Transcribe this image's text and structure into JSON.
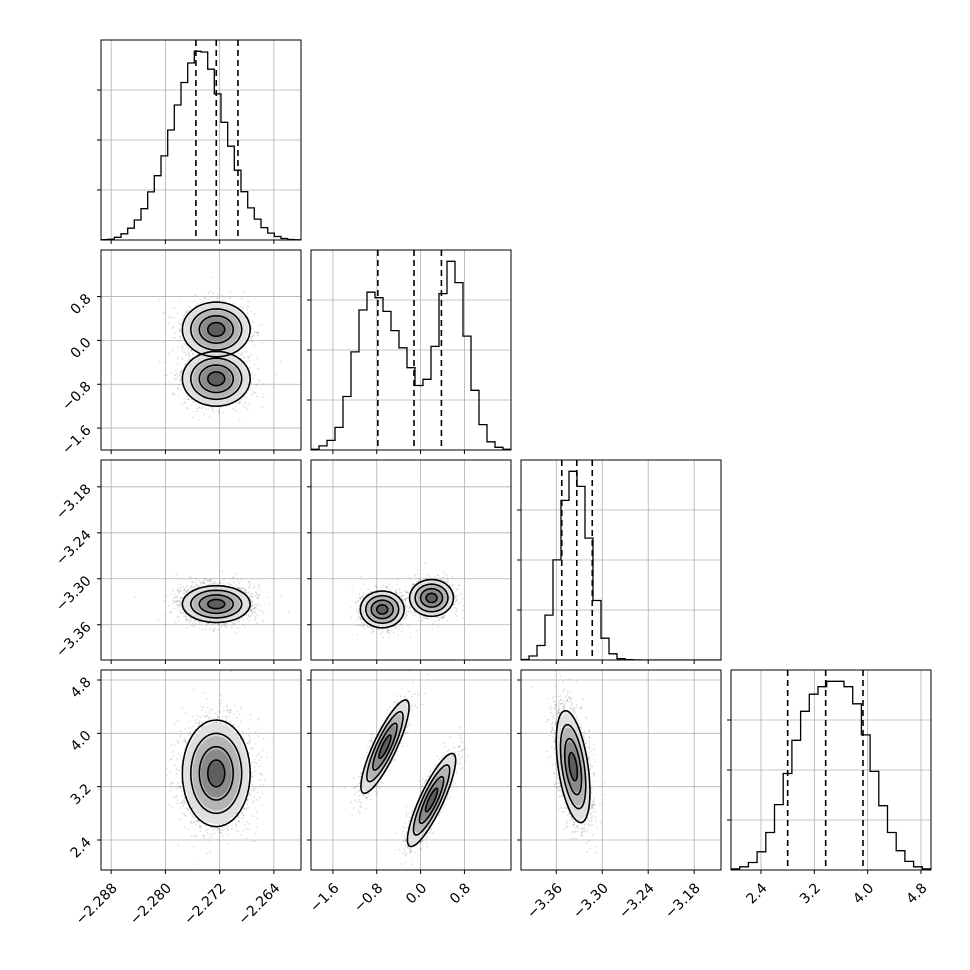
{
  "chart_data": {
    "type": "corner",
    "parameters": [
      {
        "name": "",
        "quantiles": [
          -2.2755,
          -2.2725,
          -2.2693
        ],
        "hist_counts": [
          0.2,
          0.4,
          1.5,
          3.4,
          6.5,
          11,
          17.2,
          26.4,
          35.3,
          46.2,
          60.4,
          74.1,
          86.5,
          97.2,
          103.6,
          103.2,
          93.8,
          80.2,
          64.6,
          51.5,
          38.3,
          26.5,
          17.6,
          11.5,
          6.8,
          3.8,
          1.9,
          0.8,
          0.3,
          0.1
        ],
        "range": [
          -2.2895,
          -2.26
        ]
      },
      {
        "name": "",
        "quantiles": [
          -0.78,
          -0.12,
          0.38
        ],
        "hist_counts": [
          0.1,
          0.6,
          1.4,
          3.3,
          7.8,
          14.3,
          20.4,
          23,
          22.2,
          20.2,
          17.4,
          14.9,
          12,
          9.4,
          10.3,
          15.1,
          22.8,
          27.5,
          24.4,
          16.6,
          8.7,
          3.7,
          1.2,
          0.4,
          0.1
        ],
        "range": [
          -2.0,
          1.65
        ]
      },
      {
        "name": "",
        "quantiles": [
          -3.3528,
          -3.3332,
          -3.313
        ],
        "hist_counts": [
          0.02,
          0.15,
          0.54,
          1.67,
          3.72,
          5.93,
          7.01,
          6.45,
          4.53,
          2.21,
          0.81,
          0.23,
          0.05,
          0.01,
          0.002,
          0,
          0,
          0,
          0,
          0,
          0,
          0,
          0,
          0,
          0
        ],
        "range": [
          -3.406,
          -3.145
        ]
      },
      {
        "name": "",
        "quantiles": [
          2.8,
          3.37,
          3.93
        ],
        "hist_counts": [
          0.1,
          0.3,
          0.7,
          1.7,
          3.5,
          6.1,
          9,
          12.1,
          14.8,
          16.4,
          17.1,
          17.6,
          17.6,
          17.1,
          15.5,
          12.6,
          9.2,
          6,
          3.5,
          1.8,
          0.8,
          0.3,
          0.1
        ],
        "range": [
          1.95,
          4.95
        ]
      }
    ],
    "pair_clusters": {
      "1_0": [
        {
          "x": -2.2725,
          "y": 0.2,
          "sx": 0.0025,
          "sy": 0.25,
          "w": 0.5
        },
        {
          "x": -2.2725,
          "y": -0.7,
          "sx": 0.0025,
          "sy": 0.25,
          "w": 0.5
        }
      ],
      "2_0": [
        {
          "x": -2.2725,
          "y": -3.333,
          "sx": 0.0025,
          "sy": 0.012,
          "w": 1
        }
      ],
      "2_1": [
        {
          "x": -0.7,
          "y": -3.34,
          "sx": 0.2,
          "sy": 0.012,
          "w": 0.5
        },
        {
          "x": 0.2,
          "y": -3.325,
          "sx": 0.2,
          "sy": 0.012,
          "w": 0.5
        }
      ],
      "3_0": [
        {
          "x": -2.2725,
          "y": 3.4,
          "sx": 0.0025,
          "sy": 0.4,
          "w": 1
        }
      ],
      "3_1": [
        {
          "x": -0.65,
          "y": 3.8,
          "sx": 0.22,
          "sy": 0.35,
          "rho": 0.85,
          "w": 0.5
        },
        {
          "x": 0.2,
          "y": 3.0,
          "sx": 0.22,
          "sy": 0.35,
          "rho": 0.85,
          "w": 0.5
        }
      ],
      "3_2": [
        {
          "x": -3.338,
          "y": 3.5,
          "sx": 0.011,
          "sy": 0.42,
          "rho": -0.45,
          "w": 1
        }
      ]
    },
    "tick_labels": {
      "x": [
        [
          "−2.288",
          "−2.280",
          "−2.272",
          "−2.264"
        ],
        [
          "−1.6",
          "−0.8",
          "0.0",
          "0.8"
        ],
        [
          "−3.36",
          "−3.30",
          "−3.24",
          "−3.18"
        ],
        [
          "2.4",
          "3.2",
          "4.0",
          "4.8"
        ]
      ],
      "y": [
        [],
        [
          "0.8",
          "0.0",
          "−0.8",
          "−1.6"
        ],
        [
          "−3.18",
          "−3.24",
          "−3.30",
          "−3.36"
        ],
        [
          "4.8",
          "4.0",
          "3.2",
          "2.4"
        ]
      ]
    },
    "tick_values": {
      "x": [
        [
          -2.288,
          -2.28,
          -2.272,
          -2.264
        ],
        [
          -1.6,
          -0.8,
          0.0,
          0.8
        ],
        [
          -3.36,
          -3.3,
          -3.24,
          -3.18
        ],
        [
          2.4,
          3.2,
          4.0,
          4.8
        ]
      ],
      "y": [
        [],
        [
          0.8,
          0.0,
          -0.8,
          -1.6
        ],
        [
          -3.18,
          -3.24,
          -3.3,
          -3.36
        ],
        [
          4.8,
          4.0,
          3.2,
          2.4
        ]
      ]
    },
    "grid": true,
    "colors": {
      "hist": "#000000",
      "quantile": "#000000",
      "grid": "#b0b0b0",
      "scatter": "#000000",
      "contour": "#000000"
    }
  }
}
